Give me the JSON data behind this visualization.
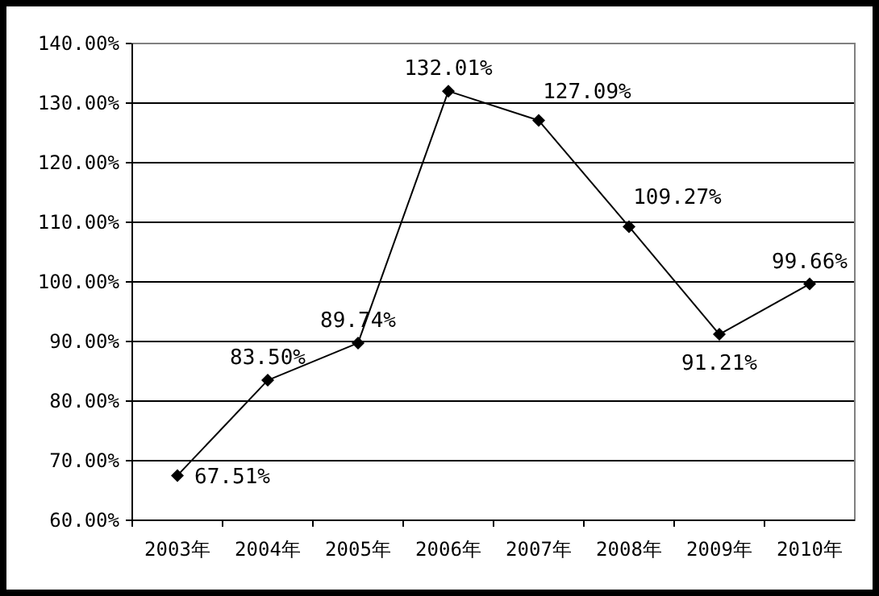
{
  "chart_data": {
    "type": "line",
    "categories": [
      "2003年",
      "2004年",
      "2005年",
      "2006年",
      "2007年",
      "2008年",
      "2009年",
      "2010年"
    ],
    "series": [
      {
        "color": "#000000",
        "values": [
          67.51,
          83.5,
          89.74,
          132.01,
          127.09,
          109.27,
          91.21,
          99.66
        ],
        "value_labels": [
          "67.51%",
          "83.50%",
          "89.74%",
          "132.01%",
          "127.09%",
          "109.27%",
          "91.21%",
          "99.66%"
        ]
      }
    ],
    "ylim": [
      60,
      140
    ],
    "yticks": [
      {
        "value": 60,
        "label": "60.00%"
      },
      {
        "value": 70,
        "label": "70.00%"
      },
      {
        "value": 80,
        "label": "80.00%"
      },
      {
        "value": 90,
        "label": "90.00%"
      },
      {
        "value": 100,
        "label": "100.00%"
      },
      {
        "value": 110,
        "label": "110.00%"
      },
      {
        "value": 120,
        "label": "120.00%"
      },
      {
        "value": 130,
        "label": "130.00%"
      },
      {
        "value": 140,
        "label": "140.00%"
      }
    ],
    "grid": "y",
    "marker": "diamond",
    "line_style": "solid"
  }
}
